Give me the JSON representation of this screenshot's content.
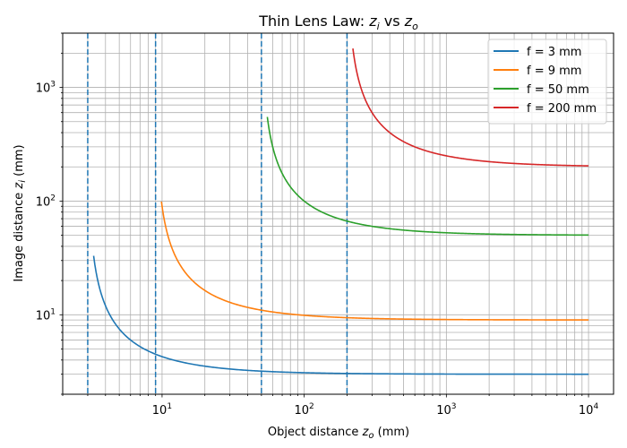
{
  "chart_data": {
    "type": "line",
    "title": {
      "prefix": "Thin Lens Law: ",
      "v1": "z",
      "s1": "i",
      "mid": " vs ",
      "v2": "z",
      "s2": "o"
    },
    "xlabel": {
      "prefix": "Object distance ",
      "v": "z",
      "s": "o",
      "suffix": " (mm)"
    },
    "ylabel": {
      "prefix": "Image distance ",
      "v": "z",
      "s": "i",
      "suffix": " (mm)"
    },
    "xscale": "log",
    "yscale": "log",
    "xlim": [
      2.0,
      15000
    ],
    "ylim": [
      2.0,
      3000
    ],
    "grid": "major-and-minor",
    "legend_position": "top-right",
    "x_tick_labels": [
      {
        "value": 10,
        "base": "10",
        "exp": "1"
      },
      {
        "value": 100,
        "base": "10",
        "exp": "2"
      },
      {
        "value": 1000,
        "base": "10",
        "exp": "3"
      },
      {
        "value": 10000,
        "base": "10",
        "exp": "4"
      }
    ],
    "y_tick_labels": [
      {
        "value": 10,
        "base": "10",
        "exp": "1"
      },
      {
        "value": 100,
        "base": "10",
        "exp": "2"
      },
      {
        "value": 1000,
        "base": "10",
        "exp": "3"
      }
    ],
    "vlines": {
      "x": [
        3,
        9,
        50,
        200
      ],
      "style": "dashed",
      "color": "#1f77b4"
    },
    "series": [
      {
        "name": "f = 3 mm",
        "focal": 3,
        "color": "#1f77b4",
        "x_start": 3.3,
        "x_end": 10000
      },
      {
        "name": "f = 9 mm",
        "focal": 9,
        "color": "#ff7f0e",
        "x_start": 9.9,
        "x_end": 10000
      },
      {
        "name": "f = 50 mm",
        "focal": 50,
        "color": "#2ca02c",
        "x_start": 55,
        "x_end": 10000
      },
      {
        "name": "f = 200 mm",
        "focal": 200,
        "color": "#d62728",
        "x_start": 220,
        "x_end": 10000
      }
    ]
  }
}
